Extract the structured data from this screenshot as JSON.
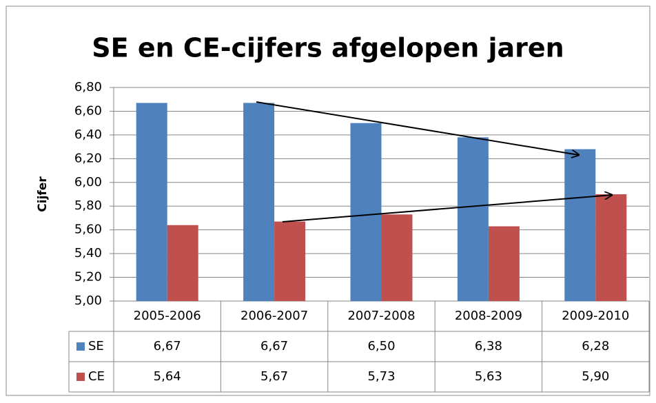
{
  "chart_data": {
    "type": "bar",
    "title": "SE en CE-cijfers afgelopen jaren",
    "y_label": "Cijfer",
    "categories": [
      "2005-2006",
      "2006-2007",
      "2007-2008",
      "2008-2009",
      "2009-2010"
    ],
    "series": [
      {
        "name": "SE",
        "color": "#4f81bd",
        "values": [
          6.67,
          6.67,
          6.5,
          6.38,
          6.28
        ],
        "value_labels": [
          "6,67",
          "6,67",
          "6,50",
          "6,38",
          "6,28"
        ]
      },
      {
        "name": "CE",
        "color": "#c0504d",
        "values": [
          5.64,
          5.67,
          5.73,
          5.63,
          5.9
        ],
        "value_labels": [
          "5,64",
          "5,67",
          "5,73",
          "5,63",
          "5,90"
        ]
      }
    ],
    "ylim": [
      5.0,
      6.8
    ],
    "yticks": [
      {
        "value": 5.0,
        "label": "5,00"
      },
      {
        "value": 5.2,
        "label": "5,20"
      },
      {
        "value": 5.4,
        "label": "5,40"
      },
      {
        "value": 5.6,
        "label": "5,60"
      },
      {
        "value": 5.8,
        "label": "5,80"
      },
      {
        "value": 6.0,
        "label": "6,00"
      },
      {
        "value": 6.2,
        "label": "6,20"
      },
      {
        "value": 6.4,
        "label": "6,40"
      },
      {
        "value": 6.6,
        "label": "6,60"
      },
      {
        "value": 6.8,
        "label": "6,80"
      }
    ],
    "grid": true
  }
}
